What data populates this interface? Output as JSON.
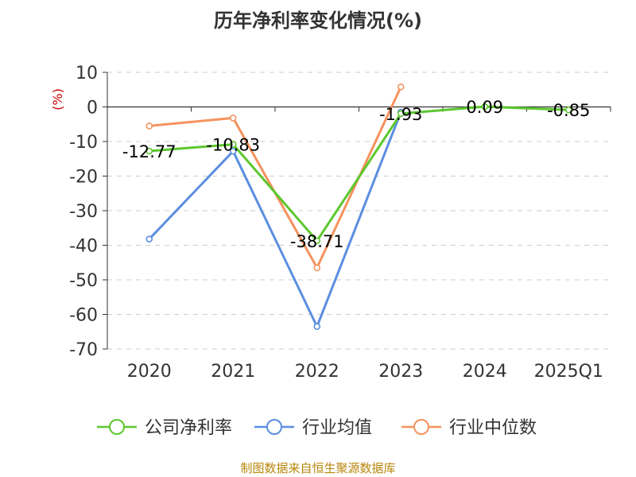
{
  "chart_data": {
    "type": "line",
    "title": "历年净利率变化情况(%)",
    "ylabel": "(%)",
    "xlabel": "",
    "categories": [
      "2020",
      "2021",
      "2022",
      "2023",
      "2024",
      "2025Q1"
    ],
    "ylim": [
      -70,
      10
    ],
    "yticks": [
      "10",
      "0",
      "-10",
      "-20",
      "-30",
      "-40",
      "-50",
      "-60",
      "-70"
    ],
    "grid": true,
    "legend_position": "bottom",
    "series": [
      {
        "name": "公司净利率",
        "color": "#5cc72e",
        "values": [
          -12.77,
          -10.83,
          -38.71,
          -1.93,
          0.09,
          -0.85
        ],
        "labels": [
          "-12.77",
          "-10.83",
          "-38.71",
          "-1.93",
          "0.09",
          "-0.85"
        ]
      },
      {
        "name": "行业均值",
        "color": "#5b8ee0",
        "values": [
          -38.2,
          -12.8,
          -63.5,
          -1.5,
          null,
          null
        ]
      },
      {
        "name": "行业中位数",
        "color": "#f5925e",
        "values": [
          -5.5,
          -3.2,
          -46.5,
          5.8,
          null,
          null
        ]
      }
    ],
    "source": "制图数据来自恒生聚源数据库"
  }
}
